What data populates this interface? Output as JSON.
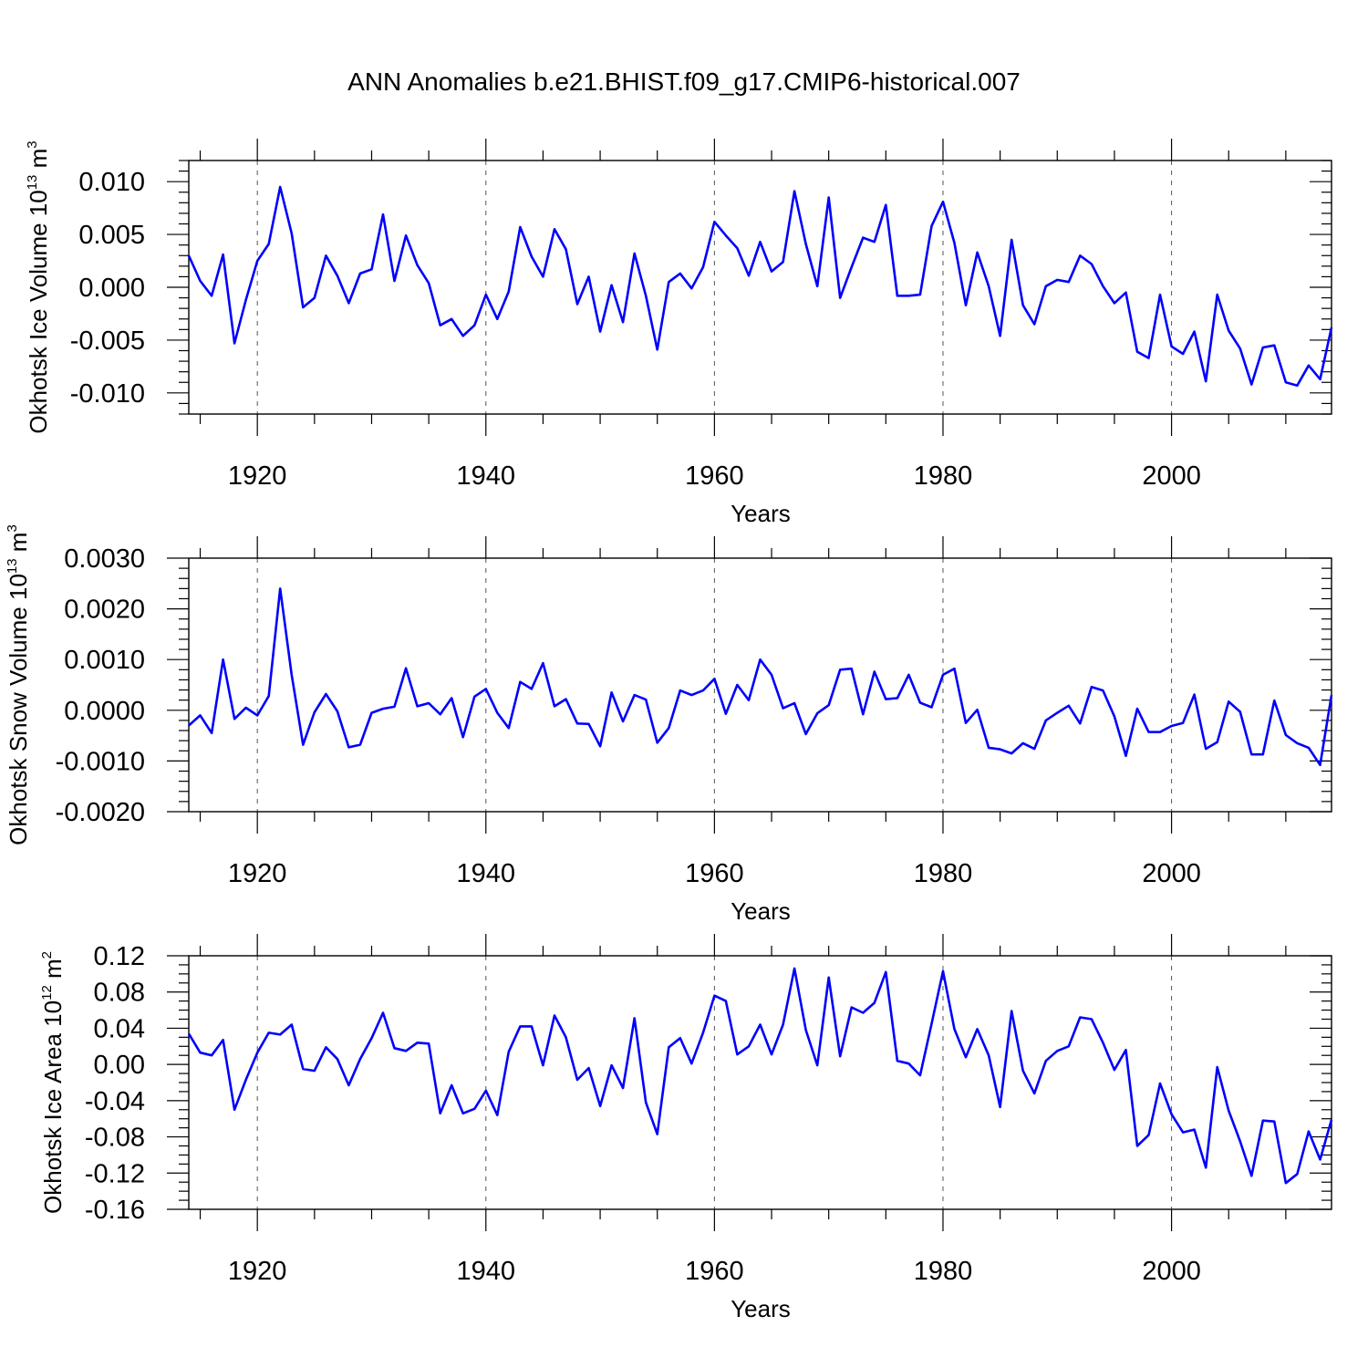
{
  "title": "ANN Anomalies b.e21.BHIST.f09_g17.CMIP6-historical.007",
  "series_color": "#0000ff",
  "chart_data": [
    {
      "type": "line",
      "ylabel_main": "Okhotsk Ice Volume 10",
      "ylabel_exp": "13",
      "ylabel_unit": " m",
      "ylabel_unit_exp": "3",
      "xlabel": "Years",
      "xlim": [
        1914,
        2014
      ],
      "ylim": [
        -0.012,
        0.012
      ],
      "yticks": [
        -0.01,
        -0.005,
        0.0,
        0.005,
        0.01
      ],
      "ytick_labels": [
        "-0.010",
        "-0.005",
        "0.000",
        "0.005",
        "0.010"
      ],
      "yminor_step": 0.001,
      "xticks": [
        1920,
        1940,
        1960,
        1980,
        2000
      ],
      "xtick_labels": [
        "1920",
        "1940",
        "1960",
        "1980",
        "2000"
      ],
      "x": [
        1914,
        1915,
        1916,
        1917,
        1918,
        1919,
        1920,
        1921,
        1922,
        1923,
        1924,
        1925,
        1926,
        1927,
        1928,
        1929,
        1930,
        1931,
        1932,
        1933,
        1934,
        1935,
        1936,
        1937,
        1938,
        1939,
        1940,
        1941,
        1942,
        1943,
        1944,
        1945,
        1946,
        1947,
        1948,
        1949,
        1950,
        1951,
        1952,
        1953,
        1954,
        1955,
        1956,
        1957,
        1958,
        1959,
        1960,
        1961,
        1962,
        1963,
        1964,
        1965,
        1966,
        1967,
        1968,
        1969,
        1970,
        1971,
        1972,
        1973,
        1974,
        1975,
        1976,
        1977,
        1978,
        1979,
        1980,
        1981,
        1982,
        1983,
        1984,
        1985,
        1986,
        1987,
        1988,
        1989,
        1990,
        1991,
        1992,
        1993,
        1994,
        1995,
        1996,
        1997,
        1998,
        1999,
        2000,
        2001,
        2002,
        2003,
        2004,
        2005,
        2006,
        2007,
        2008,
        2009,
        2010,
        2011,
        2012,
        2013,
        2014
      ],
      "values": [
        0.003,
        0.0006,
        -0.0008,
        0.0031,
        -0.0053,
        -0.0012,
        0.0025,
        0.0041,
        0.0095,
        0.0051,
        -0.0019,
        -0.001,
        0.003,
        0.0011,
        -0.0015,
        0.0013,
        0.0017,
        0.0069,
        0.0006,
        0.0049,
        0.0021,
        0.0004,
        -0.0036,
        -0.003,
        -0.0046,
        -0.0036,
        -0.0007,
        -0.003,
        -0.0004,
        0.0057,
        0.0029,
        0.001,
        0.0055,
        0.0036,
        -0.0016,
        0.001,
        -0.0042,
        0.0002,
        -0.0033,
        0.0032,
        -0.0008,
        -0.0059,
        0.0005,
        0.0013,
        -0.0001,
        0.0019,
        0.0062,
        0.0049,
        0.0037,
        0.0011,
        0.0043,
        0.0015,
        0.0024,
        0.0091,
        0.0041,
        0.0001,
        0.0085,
        -0.001,
        0.0019,
        0.0047,
        0.0043,
        0.0078,
        -0.0008,
        -0.0008,
        -0.0007,
        0.0058,
        0.0081,
        0.0042,
        -0.0017,
        0.0033,
        0.0001,
        -0.0046,
        0.0045,
        -0.0017,
        -0.0035,
        0.0001,
        0.0007,
        0.0005,
        0.003,
        0.0022,
        0.0001,
        -0.0015,
        -0.0005,
        -0.0061,
        -0.0067,
        -0.0007,
        -0.0056,
        -0.0063,
        -0.0042,
        -0.0089,
        -0.0007,
        -0.0041,
        -0.0058,
        -0.0092,
        -0.0057,
        -0.0055,
        -0.009,
        -0.0093,
        -0.0074,
        -0.0087,
        -0.0038
      ]
    },
    {
      "type": "line",
      "ylabel_main": "Okhotsk Snow Volume 10",
      "ylabel_exp": "13",
      "ylabel_unit": " m",
      "ylabel_unit_exp": "3",
      "xlabel": "Years",
      "xlim": [
        1914,
        2014
      ],
      "ylim": [
        -0.002,
        0.003
      ],
      "yticks": [
        -0.002,
        -0.001,
        0.0,
        0.001,
        0.002,
        0.003
      ],
      "ytick_labels": [
        "-0.0020",
        "-0.0010",
        "0.0000",
        "0.0010",
        "0.0020",
        "0.0030"
      ],
      "yminor_step": 0.0002,
      "xticks": [
        1920,
        1940,
        1960,
        1980,
        2000
      ],
      "xtick_labels": [
        "1920",
        "1940",
        "1960",
        "1980",
        "2000"
      ],
      "x": [
        1914,
        1915,
        1916,
        1917,
        1918,
        1919,
        1920,
        1921,
        1922,
        1923,
        1924,
        1925,
        1926,
        1927,
        1928,
        1929,
        1930,
        1931,
        1932,
        1933,
        1934,
        1935,
        1936,
        1937,
        1938,
        1939,
        1940,
        1941,
        1942,
        1943,
        1944,
        1945,
        1946,
        1947,
        1948,
        1949,
        1950,
        1951,
        1952,
        1953,
        1954,
        1955,
        1956,
        1957,
        1958,
        1959,
        1960,
        1961,
        1962,
        1963,
        1964,
        1965,
        1966,
        1967,
        1968,
        1969,
        1970,
        1971,
        1972,
        1973,
        1974,
        1975,
        1976,
        1977,
        1978,
        1979,
        1980,
        1981,
        1982,
        1983,
        1984,
        1985,
        1986,
        1987,
        1988,
        1989,
        1990,
        1991,
        1992,
        1993,
        1994,
        1995,
        1996,
        1997,
        1998,
        1999,
        2000,
        2001,
        2002,
        2003,
        2004,
        2005,
        2006,
        2007,
        2008,
        2009,
        2010,
        2011,
        2012,
        2013,
        2014
      ],
      "values": [
        -0.0003,
        -0.0001,
        -0.00045,
        0.001,
        -0.00017,
        5e-05,
        -0.0001,
        0.00028,
        0.0024,
        0.0007,
        -0.00068,
        -4e-05,
        0.00032,
        -2e-05,
        -0.00073,
        -0.00068,
        -5e-05,
        3e-05,
        7e-05,
        0.00083,
        8e-05,
        0.00014,
        -8e-05,
        0.00024,
        -0.00053,
        0.00027,
        0.00042,
        -5e-05,
        -0.00035,
        0.00056,
        0.00042,
        0.00093,
        8e-05,
        0.00022,
        -0.00026,
        -0.00027,
        -0.00071,
        0.00035,
        -0.00022,
        0.0003,
        0.00021,
        -0.00064,
        -0.00035,
        0.00039,
        0.0003,
        0.00039,
        0.00062,
        -7e-05,
        0.0005,
        0.0002,
        0.001,
        0.0007,
        4e-05,
        0.00014,
        -0.00047,
        -6e-05,
        0.0001,
        0.0008,
        0.00082,
        -8e-05,
        0.00076,
        0.00022,
        0.00024,
        0.0007,
        0.00015,
        6e-05,
        0.0007,
        0.00082,
        -0.00025,
        1e-05,
        -0.00074,
        -0.00077,
        -0.00085,
        -0.00065,
        -0.00076,
        -0.0002,
        -5e-05,
        9e-05,
        -0.00026,
        0.00046,
        0.00039,
        -0.00012,
        -0.0009,
        3e-05,
        -0.00043,
        -0.00043,
        -0.00031,
        -0.00025,
        0.00031,
        -0.00076,
        -0.00063,
        0.00017,
        -3e-05,
        -0.00087,
        -0.00087,
        0.00019,
        -0.00049,
        -0.00065,
        -0.00074,
        -0.00108,
        0.0003
      ]
    },
    {
      "type": "line",
      "ylabel_main": "Okhotsk Ice Area 10",
      "ylabel_exp": "12",
      "ylabel_unit": " m",
      "ylabel_unit_exp": "2",
      "xlabel": "Years",
      "xlim": [
        1914,
        2014
      ],
      "ylim": [
        -0.16,
        0.12
      ],
      "yticks": [
        -0.16,
        -0.12,
        -0.08,
        -0.04,
        0.0,
        0.04,
        0.08,
        0.12
      ],
      "ytick_labels": [
        "-0.16",
        "-0.12",
        "-0.08",
        "-0.04",
        "0.00",
        "0.04",
        "0.08",
        "0.12"
      ],
      "yminor_step": 0.01,
      "xticks": [
        1920,
        1940,
        1960,
        1980,
        2000
      ],
      "xtick_labels": [
        "1920",
        "1940",
        "1960",
        "1980",
        "2000"
      ],
      "x": [
        1914,
        1915,
        1916,
        1917,
        1918,
        1919,
        1920,
        1921,
        1922,
        1923,
        1924,
        1925,
        1926,
        1927,
        1928,
        1929,
        1930,
        1931,
        1932,
        1933,
        1934,
        1935,
        1936,
        1937,
        1938,
        1939,
        1940,
        1941,
        1942,
        1943,
        1944,
        1945,
        1946,
        1947,
        1948,
        1949,
        1950,
        1951,
        1952,
        1953,
        1954,
        1955,
        1956,
        1957,
        1958,
        1959,
        1960,
        1961,
        1962,
        1963,
        1964,
        1965,
        1966,
        1967,
        1968,
        1969,
        1970,
        1971,
        1972,
        1973,
        1974,
        1975,
        1976,
        1977,
        1978,
        1979,
        1980,
        1981,
        1982,
        1983,
        1984,
        1985,
        1986,
        1987,
        1988,
        1989,
        1990,
        1991,
        1992,
        1993,
        1994,
        1995,
        1996,
        1997,
        1998,
        1999,
        2000,
        2001,
        2002,
        2003,
        2004,
        2005,
        2006,
        2007,
        2008,
        2009,
        2010,
        2011,
        2012,
        2013,
        2014
      ],
      "values": [
        0.034,
        0.013,
        0.01,
        0.027,
        -0.05,
        -0.017,
        0.013,
        0.035,
        0.033,
        0.044,
        -0.005,
        -0.007,
        0.019,
        0.006,
        -0.023,
        0.006,
        0.029,
        0.057,
        0.018,
        0.015,
        0.024,
        0.023,
        -0.054,
        -0.023,
        -0.054,
        -0.049,
        -0.029,
        -0.056,
        0.014,
        0.042,
        0.042,
        -0.001,
        0.054,
        0.03,
        -0.017,
        -0.004,
        -0.046,
        -0.001,
        -0.026,
        0.051,
        -0.042,
        -0.077,
        0.019,
        0.029,
        0.001,
        0.035,
        0.076,
        0.07,
        0.011,
        0.02,
        0.044,
        0.011,
        0.044,
        0.106,
        0.038,
        -0.001,
        0.096,
        0.009,
        0.063,
        0.057,
        0.068,
        0.102,
        0.004,
        0.001,
        -0.012,
        0.045,
        0.103,
        0.039,
        0.008,
        0.039,
        0.01,
        -0.047,
        0.059,
        -0.007,
        -0.032,
        0.004,
        0.015,
        0.02,
        0.052,
        0.05,
        0.024,
        -0.006,
        0.016,
        -0.09,
        -0.078,
        -0.021,
        -0.055,
        -0.075,
        -0.072,
        -0.114,
        -0.003,
        -0.051,
        -0.085,
        -0.123,
        -0.062,
        -0.063,
        -0.131,
        -0.121,
        -0.074,
        -0.105,
        -0.061
      ]
    }
  ]
}
